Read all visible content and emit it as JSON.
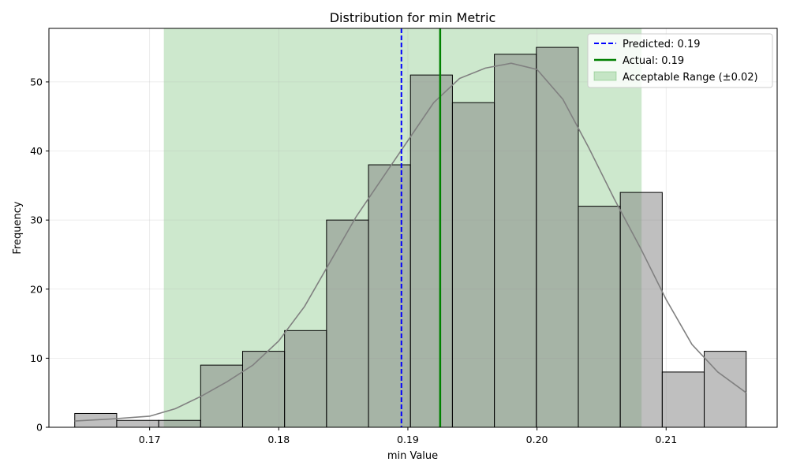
{
  "chart_data": {
    "type": "bar",
    "title": "Distribution for min Metric",
    "xlabel": "min Value",
    "ylabel": "Frequency",
    "xlim": [
      0.1622,
      0.2186
    ],
    "ylim": [
      0,
      57.75
    ],
    "xticks": [
      0.17,
      0.18,
      0.19,
      0.2,
      0.21
    ],
    "xtick_labels": [
      "0.17",
      "0.18",
      "0.19",
      "0.20",
      "0.21"
    ],
    "yticks": [
      0,
      10,
      20,
      30,
      40,
      50
    ],
    "ytick_labels": [
      "0",
      "10",
      "20",
      "30",
      "40",
      "50"
    ],
    "grid": true,
    "legend_position": "top-right",
    "histogram": {
      "bin_edges": [
        0.1642,
        0.16745,
        0.1707,
        0.17395,
        0.1772,
        0.18045,
        0.1837,
        0.18695,
        0.1902,
        0.19345,
        0.1967,
        0.19995,
        0.2032,
        0.20645,
        0.2097,
        0.21295,
        0.2162
      ],
      "counts": [
        2,
        1,
        1,
        9,
        11,
        14,
        30,
        38,
        51,
        47,
        54,
        55,
        32,
        34,
        8,
        11
      ],
      "color": "#808080"
    },
    "kde": {
      "x": [
        0.1642,
        0.167,
        0.17,
        0.172,
        0.174,
        0.176,
        0.178,
        0.18,
        0.182,
        0.184,
        0.186,
        0.188,
        0.19,
        0.192,
        0.194,
        0.196,
        0.198,
        0.2,
        0.202,
        0.204,
        0.206,
        0.208,
        0.21,
        0.212,
        0.214,
        0.2162
      ],
      "y": [
        0.9,
        1.2,
        1.6,
        2.7,
        4.5,
        6.6,
        9.0,
        12.5,
        17.5,
        24.0,
        30.5,
        36.0,
        41.5,
        47.0,
        50.5,
        52.0,
        52.7,
        51.8,
        47.5,
        40.5,
        33.0,
        26.0,
        18.5,
        12.0,
        8.0,
        5.0
      ],
      "color": "#808080"
    },
    "acceptable_range": {
      "min": 0.1711,
      "max": 0.2081,
      "color": "#2ca02c",
      "label": "Acceptable Range (±0.02)"
    },
    "predicted": {
      "value": 0.1895,
      "color": "#0000ff",
      "label": "Predicted: 0.19"
    },
    "actual": {
      "value": 0.1925,
      "color": "#008000",
      "label": "Actual: 0.19"
    }
  }
}
